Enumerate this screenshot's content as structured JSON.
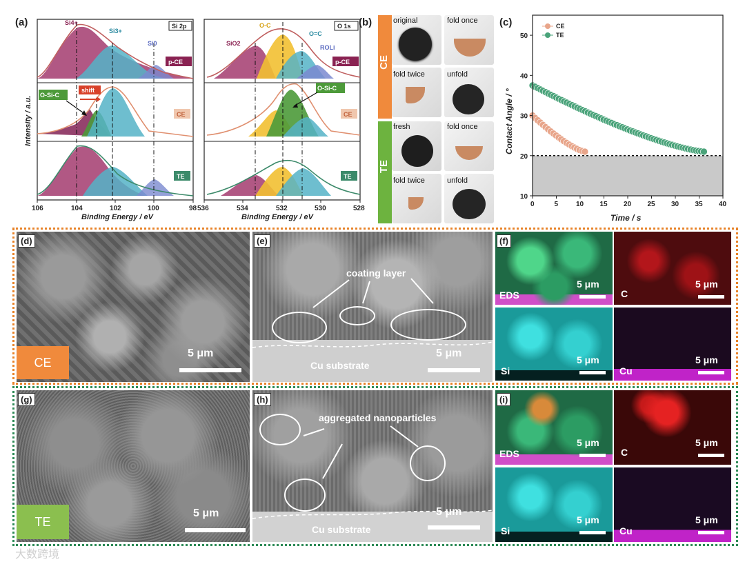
{
  "panel_a": {
    "label": "(a)",
    "left_plot": {
      "title": "Si 2p",
      "xlabel": "Binding Energy / eV",
      "ylabel": "Intensity / a.u.",
      "x_ticks": [
        "106",
        "104",
        "102",
        "100",
        "98"
      ],
      "peaks": [
        "Si4+",
        "Si3+",
        "Si0"
      ],
      "shift_label": "shift",
      "osic_label": "O-Si-C",
      "rows": [
        "p-CE",
        "CE",
        "TE"
      ]
    },
    "right_plot": {
      "title": "O 1s",
      "xlabel": "Binding Energy / eV",
      "x_ticks": [
        "536",
        "534",
        "532",
        "530",
        "528"
      ],
      "peaks": [
        "SiO2",
        "O-C",
        "O=C",
        "ROLi"
      ],
      "osic_label": "O-Si-C",
      "rows": [
        "p-CE",
        "CE",
        "TE"
      ]
    }
  },
  "panel_b": {
    "label": "(b)",
    "groups": [
      {
        "name": "CE",
        "color": "#f08a3c",
        "photos": [
          "original",
          "fold once",
          "fold twice",
          "unfold"
        ]
      },
      {
        "name": "TE",
        "color": "#6db33f",
        "photos": [
          "fresh",
          "fold once",
          "fold twice",
          "unfold"
        ]
      }
    ]
  },
  "panel_c": {
    "label": "(c)",
    "xlabel": "Time / s",
    "ylabel": "Contact Angle / °"
  },
  "chart_data": {
    "type": "scatter",
    "xlabel": "Time / s",
    "ylabel": "Contact Angle / °",
    "xlim": [
      0,
      40
    ],
    "ylim": [
      10,
      55
    ],
    "x_ticks": [
      0,
      5,
      10,
      15,
      20,
      25,
      30,
      35,
      40
    ],
    "y_ticks": [
      10,
      20,
      30,
      40,
      50
    ],
    "reference_line_y": 20,
    "legend_position": "top-left",
    "series": [
      {
        "name": "CE",
        "color": "#e8a58a",
        "x_start": 0,
        "x_end": 11,
        "y_start": 30,
        "y_end": 21
      },
      {
        "name": "TE",
        "color": "#4aa37a",
        "x_start": 0,
        "x_end": 36,
        "y_start": 37.5,
        "y_end": 21
      }
    ]
  },
  "panel_d": {
    "label": "(d)",
    "scale": "5 μm",
    "tag": "CE",
    "tag_color": "#f08a3c"
  },
  "panel_e": {
    "label": "(e)",
    "scale": "5 μm",
    "annotation": "coating layer",
    "substrate": "Cu substrate"
  },
  "panel_f": {
    "label": "(f)",
    "tiles": [
      "EDS",
      "C",
      "Si",
      "Cu"
    ],
    "scale": "5 μm"
  },
  "panel_g": {
    "label": "(g)",
    "scale": "5 μm",
    "tag": "TE",
    "tag_color": "#8bbf4f"
  },
  "panel_h": {
    "label": "(h)",
    "scale": "5 μm",
    "annotation": "aggregated nanoparticles",
    "substrate": "Cu substrate"
  },
  "panel_i": {
    "label": "(i)",
    "tiles": [
      "EDS",
      "C",
      "Si",
      "Cu"
    ],
    "scale": "5 μm"
  },
  "frame_colors": {
    "top": "#e8832a",
    "bottom": "#2e8b57"
  },
  "watermark": "大数跨境"
}
